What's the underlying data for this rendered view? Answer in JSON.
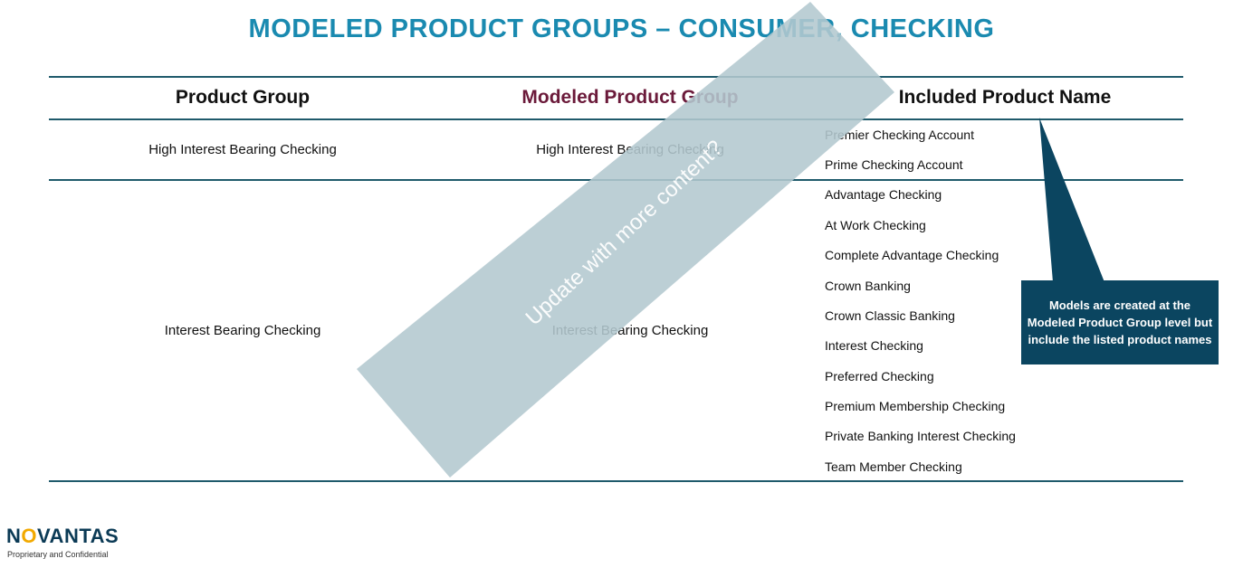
{
  "title": "MODELED PRODUCT GROUPS – CONSUMER, CHECKING",
  "headers": {
    "product_group": "Product Group",
    "modeled_product_group": "Modeled Product Group",
    "included_product_name": "Included Product Name"
  },
  "rows": [
    {
      "product_group": "High Interest Bearing Checking",
      "modeled_product_group": "High Interest Bearing Checking",
      "products": [
        "Premier Checking Account",
        "Prime Checking Account"
      ]
    },
    {
      "product_group": "Interest Bearing Checking",
      "modeled_product_group": "Interest Bearing Checking",
      "products": [
        "Advantage Checking",
        "At Work Checking",
        "Complete Advantage Checking",
        "Crown Banking",
        "Crown Classic Banking",
        "Interest Checking",
        "Preferred Checking",
        "Premium Membership Checking",
        "Private Banking Interest Checking",
        "Team Member Checking"
      ]
    }
  ],
  "watermark": "Update with more content?",
  "callout": "Models are created at the Modeled Product Group level but include the listed product names",
  "logo": {
    "pre": "N",
    "o": "O",
    "post": "VANTAS"
  },
  "footer": "Proprietary and Confidential",
  "colors": {
    "title": "#1a8ab0",
    "modeled_header": "#6b1a3a",
    "callout_bg": "#0b4560",
    "watermark_bg": "#b3c8cf",
    "rule": "#1f5a6b"
  }
}
